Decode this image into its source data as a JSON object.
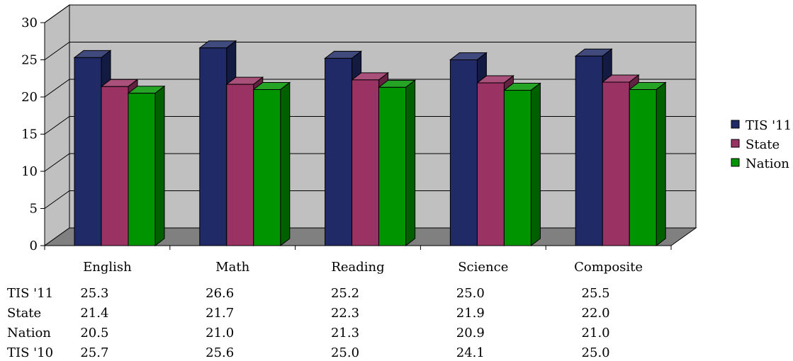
{
  "chart_data": {
    "type": "bar",
    "style": "3d-clustered-column",
    "title": "",
    "xlabel": "",
    "ylabel": "",
    "ylim": [
      0,
      30
    ],
    "yticks": [
      0,
      5,
      10,
      15,
      20,
      25,
      30
    ],
    "grid": true,
    "legend_position": "right",
    "categories": [
      "English",
      "Math",
      "Reading",
      "Science",
      "Composite"
    ],
    "series": [
      {
        "name": "TIS '11",
        "values": [
          25.3,
          26.6,
          25.2,
          25.0,
          25.5
        ],
        "color": "#1f2a66"
      },
      {
        "name": "State",
        "values": [
          21.4,
          21.7,
          22.3,
          21.9,
          22.0
        ],
        "color": "#9b3264"
      },
      {
        "name": "Nation",
        "values": [
          20.5,
          21.0,
          21.3,
          20.9,
          21.0
        ],
        "color": "#009400"
      }
    ],
    "data_table": {
      "rows": [
        {
          "label": "TIS '11",
          "values": [
            "25.3",
            "26.6",
            "25.2",
            "25.0",
            "25.5"
          ]
        },
        {
          "label": "State",
          "values": [
            "21.4",
            "21.7",
            "22.3",
            "21.9",
            "22.0"
          ]
        },
        {
          "label": "Nation",
          "values": [
            "20.5",
            "21.0",
            "21.3",
            "20.9",
            "21.0"
          ]
        },
        {
          "label": "TIS '10",
          "values": [
            "25.7",
            "25.6",
            "25.0",
            "24.1",
            "25.0"
          ]
        }
      ]
    },
    "colors": {
      "wall": "#c0c0c0",
      "floor": "#808080",
      "gridline": "#000000"
    }
  }
}
